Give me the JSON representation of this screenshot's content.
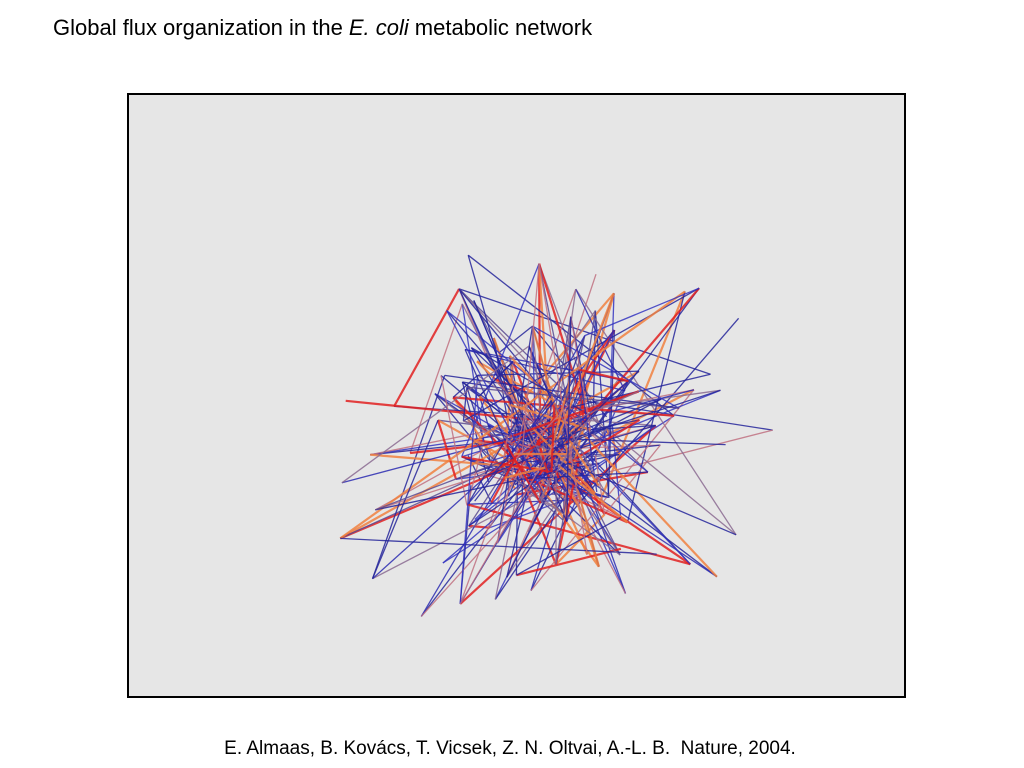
{
  "header": {
    "title_start": "Global flux organization in the",
    "title_italic": "E. coli",
    "title_end": "metabolic network"
  },
  "caption": "E. Almaas, B. Kovács, T. Vicsek, Z. N. Oltvai, A.-L. B.  Nature, 2004."
}
